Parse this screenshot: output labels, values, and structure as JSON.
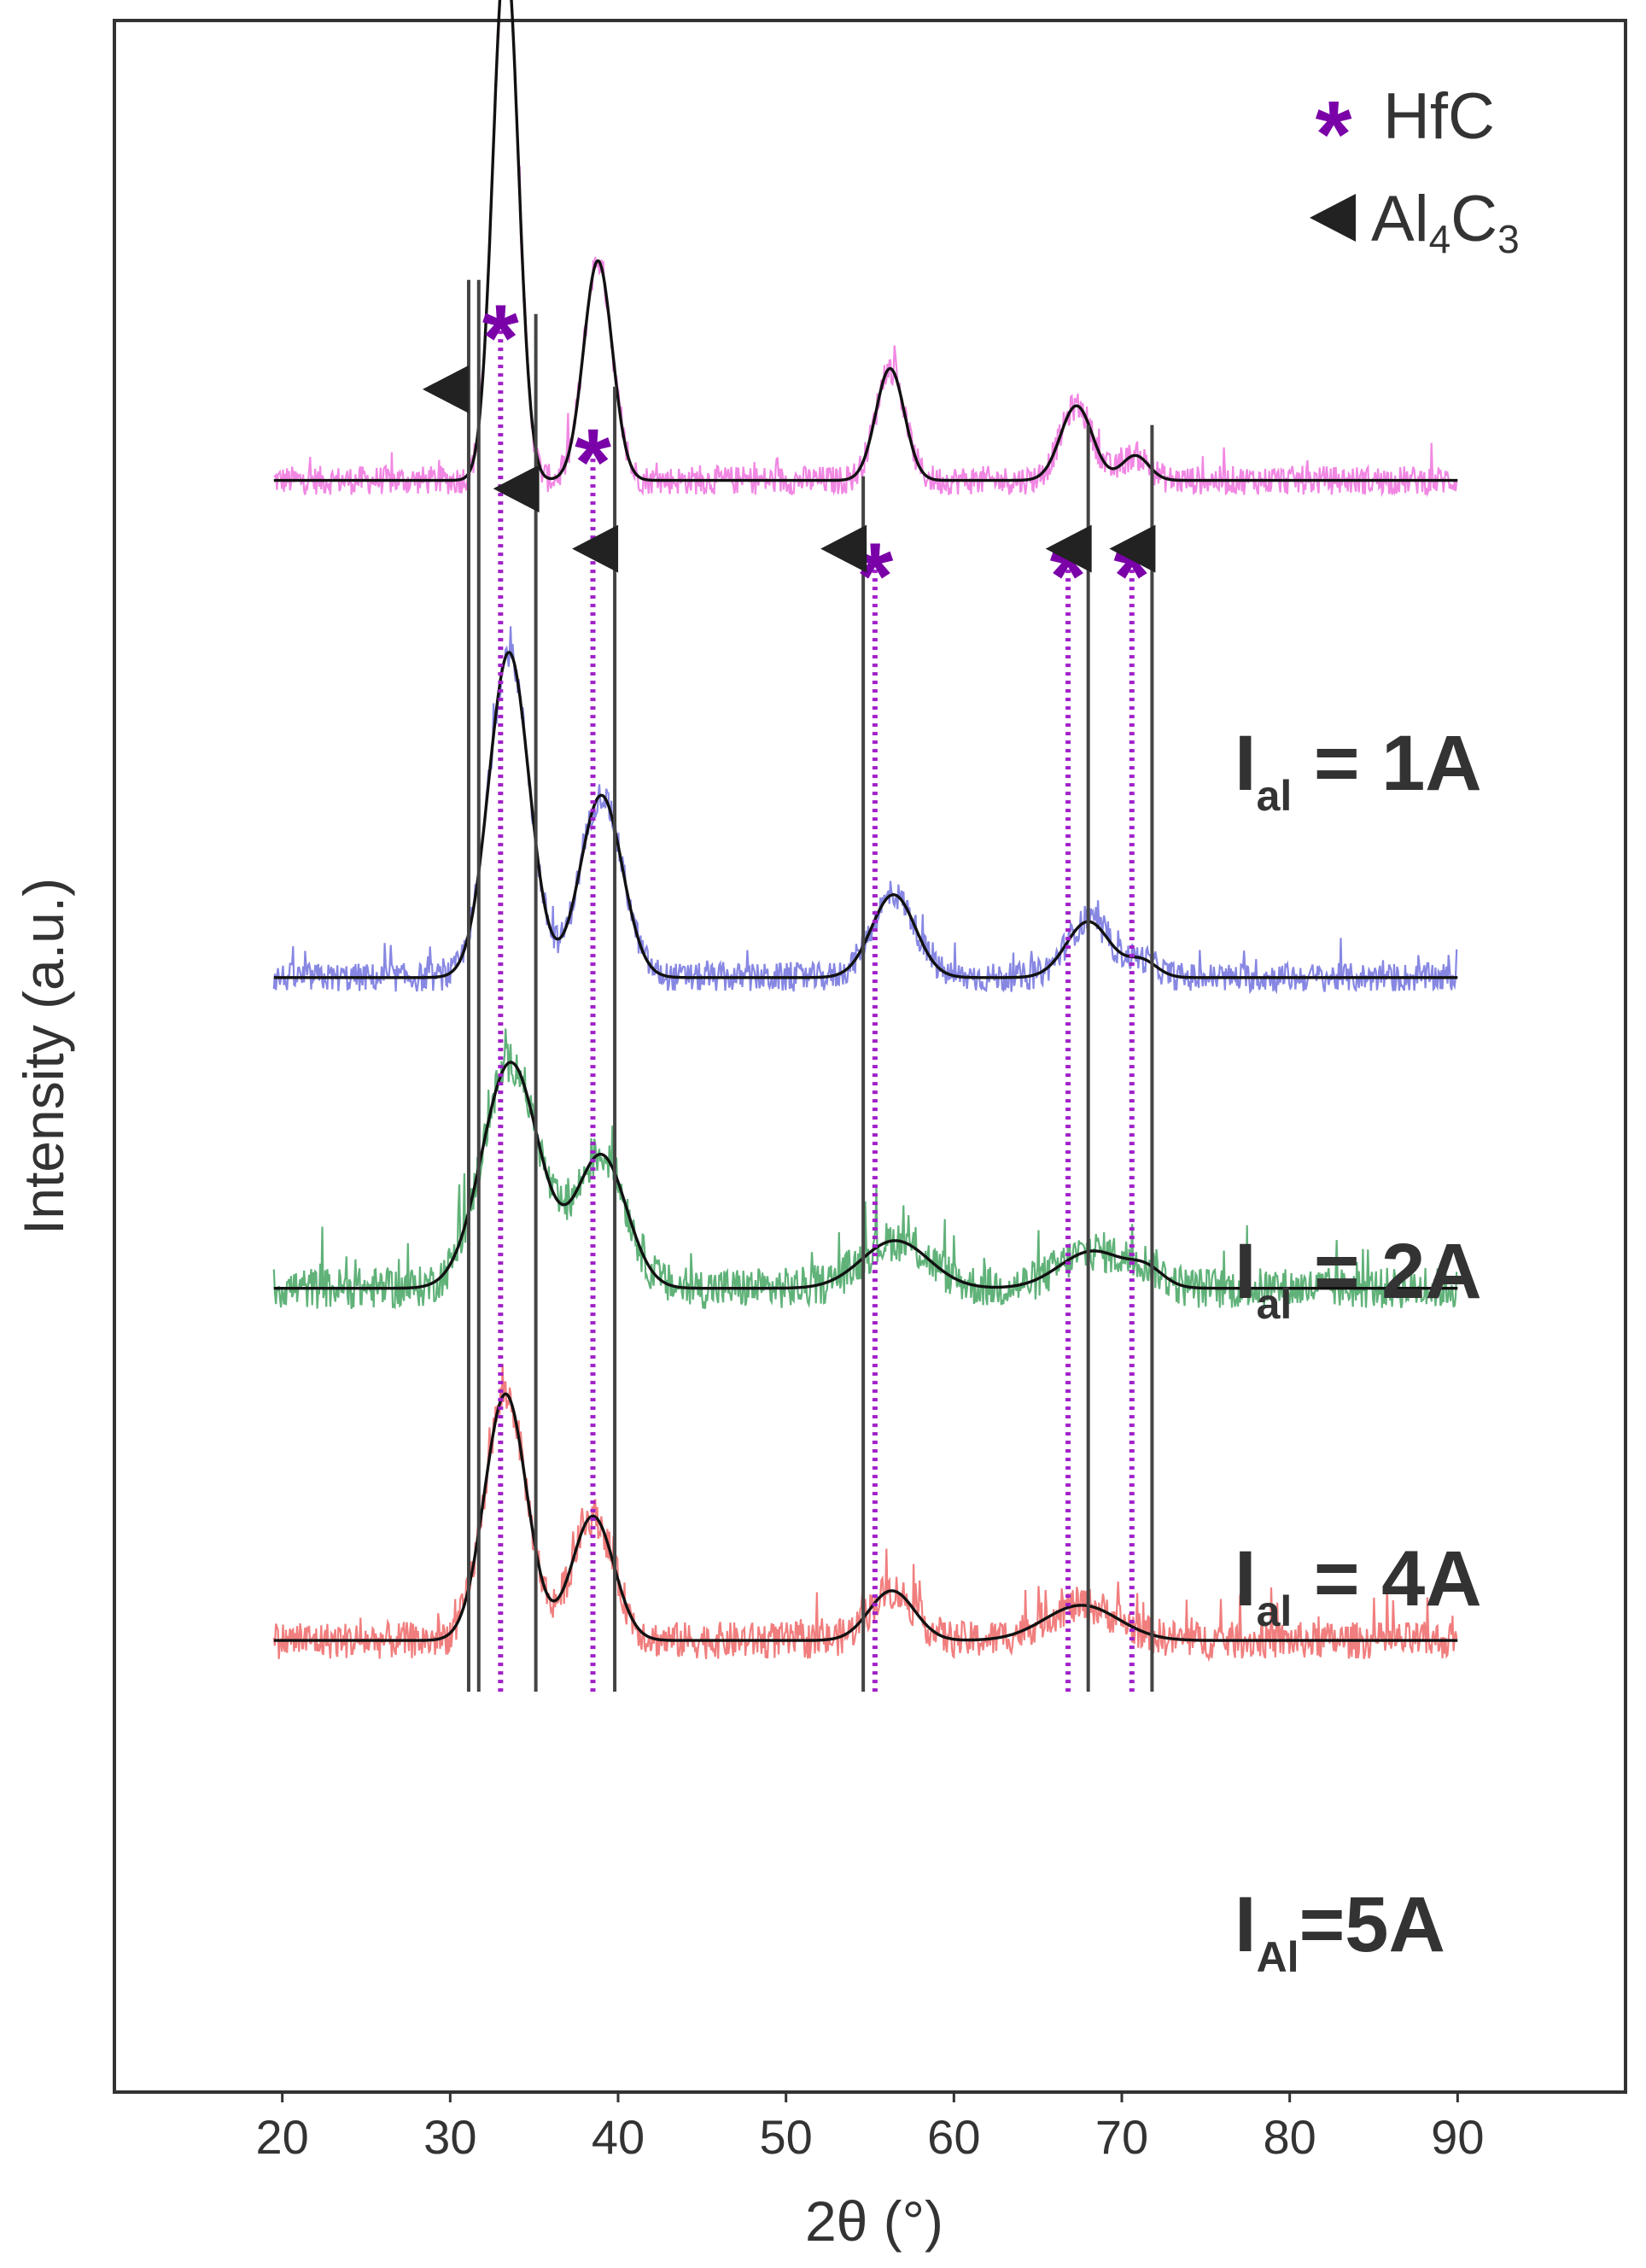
{
  "chart_data": {
    "type": "line",
    "title": "",
    "xlabel": "2θ (°)",
    "ylabel": "Intensity (a.u.)",
    "xlim": [
      10,
      100
    ],
    "ylim": [
      0,
      100
    ],
    "yticks_shown": false,
    "xticks": [
      20,
      30,
      40,
      50,
      60,
      70,
      80,
      90
    ],
    "legend": {
      "placement": "top-right",
      "entries": [
        {
          "symbol": "star",
          "label": "HfC",
          "color": "#7a00a8"
        },
        {
          "symbol": "left-triangle",
          "label_main": "Al",
          "sub1": "4",
          "label_mid": "C",
          "sub2": "3",
          "color": "#222222"
        }
      ]
    },
    "reference_lines": {
      "HfC": {
        "style": "dotted",
        "color": "#a020c8",
        "positions": [
          33.0,
          38.5,
          55.3,
          66.8,
          70.6
        ]
      },
      "Al4C3": {
        "style": "solid",
        "color": "#444444",
        "positions": [
          31.1,
          31.7,
          35.1,
          39.8,
          54.6,
          68.0,
          71.8
        ]
      }
    },
    "series": [
      {
        "name": "Ial = 1A",
        "label_main": "I",
        "label_sub": "al",
        "label_rest": " = 1A",
        "color": "#f07ae0",
        "baseline": 77.8,
        "noise": 0.7,
        "fit_peaks": [
          {
            "center": 33.3,
            "height": 25.8,
            "width": 0.75
          },
          {
            "center": 38.8,
            "height": 10.6,
            "width": 0.85
          },
          {
            "center": 56.2,
            "height": 5.4,
            "width": 0.85
          },
          {
            "center": 67.3,
            "height": 3.6,
            "width": 0.95
          },
          {
            "center": 70.8,
            "height": 1.2,
            "width": 0.8
          }
        ]
      },
      {
        "name": "Ial = 2A",
        "label_main": "I",
        "label_sub": "al",
        "label_rest": " = 2A",
        "color": "#7a7ae0",
        "baseline": 53.8,
        "noise": 0.7,
        "fit_peaks": [
          {
            "center": 33.5,
            "height": 15.7,
            "width": 1.2
          },
          {
            "center": 39.0,
            "height": 8.8,
            "width": 1.25
          },
          {
            "center": 56.4,
            "height": 4.0,
            "width": 1.3
          },
          {
            "center": 68.0,
            "height": 2.7,
            "width": 1.3
          },
          {
            "center": 71.2,
            "height": 0.8,
            "width": 0.9
          }
        ]
      },
      {
        "name": "Ial = 4A",
        "label_main": "I",
        "label_sub": "al",
        "label_rest": " = 4A",
        "color": "#4faa6a",
        "baseline": 38.8,
        "noise": 1.0,
        "fit_peaks": [
          {
            "center": 33.6,
            "height": 10.9,
            "width": 1.7
          },
          {
            "center": 39.0,
            "height": 6.4,
            "width": 1.5
          },
          {
            "center": 56.5,
            "height": 2.3,
            "width": 2.0
          },
          {
            "center": 68.3,
            "height": 1.8,
            "width": 2.0
          },
          {
            "center": 71.5,
            "height": 0.7,
            "width": 1.0
          }
        ]
      },
      {
        "name": "IAl=5A",
        "label_main": "I",
        "label_sub": "Al",
        "label_rest": "=5A",
        "color": "#f07070",
        "baseline": 21.8,
        "noise": 0.9,
        "fit_peaks": [
          {
            "center": 33.3,
            "height": 11.9,
            "width": 1.25
          },
          {
            "center": 38.5,
            "height": 6.0,
            "width": 1.25
          },
          {
            "center": 56.3,
            "height": 2.4,
            "width": 1.35
          },
          {
            "center": 67.6,
            "height": 1.7,
            "width": 2.2
          }
        ]
      }
    ]
  }
}
